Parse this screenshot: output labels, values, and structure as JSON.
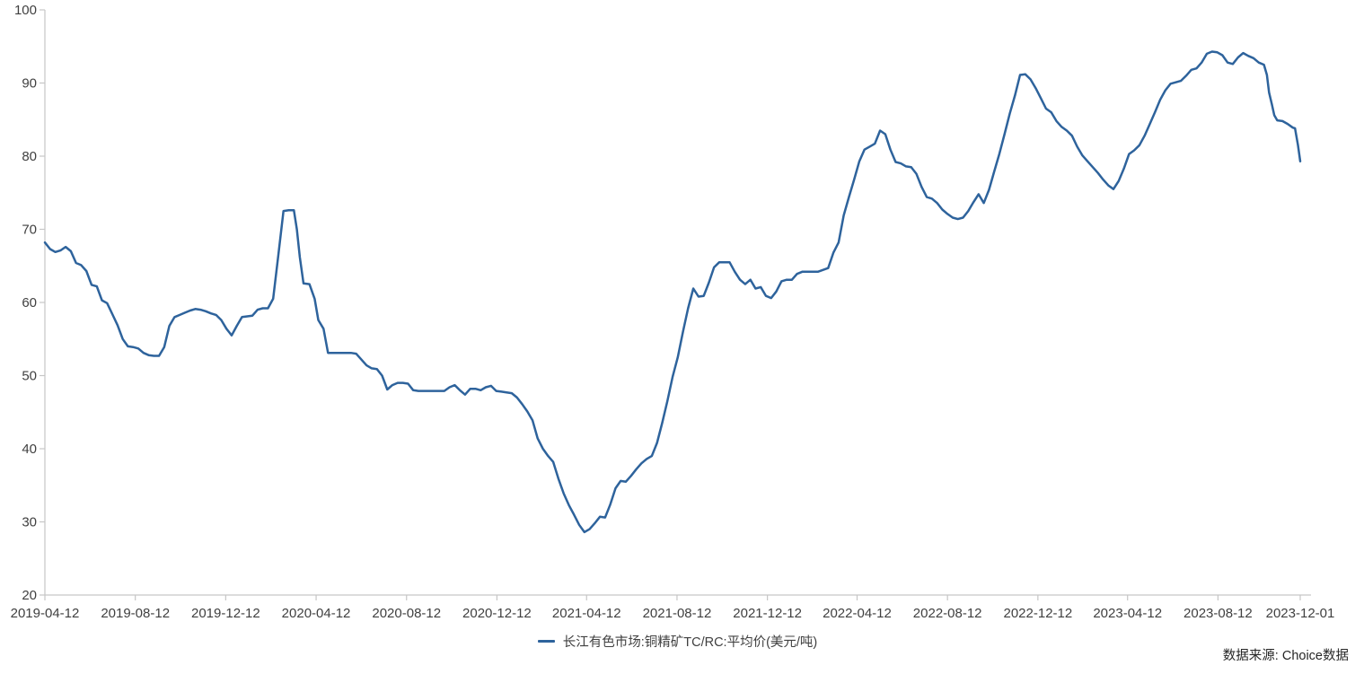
{
  "chart_data": {
    "type": "line",
    "title": "",
    "xlabel": "",
    "ylabel": "",
    "legend": "长江有色市场:铜精矿TC/RC:平均价(美元/吨)",
    "legend_position": "bottom-center",
    "grid": false,
    "ylim": [
      20,
      100
    ],
    "y_ticks": [
      20,
      30,
      40,
      50,
      60,
      70,
      80,
      90,
      100
    ],
    "x_tick_labels": [
      "2019-04-12",
      "2019-08-12",
      "2019-12-12",
      "2020-04-12",
      "2020-08-12",
      "2020-12-12",
      "2021-04-12",
      "2021-08-12",
      "2021-12-12",
      "2022-04-12",
      "2022-08-12",
      "2022-12-12",
      "2023-04-12",
      "2023-08-12",
      "2023-12-01"
    ],
    "line_color": "#2E639C",
    "axis_color": "#C6C6C6",
    "text_color": "#404040",
    "points": [
      [
        "2019-04-12",
        68.2
      ],
      [
        "2019-04-19",
        67.3
      ],
      [
        "2019-04-26",
        66.9
      ],
      [
        "2019-05-03",
        67.1
      ],
      [
        "2019-05-10",
        67.6
      ],
      [
        "2019-05-17",
        67.0
      ],
      [
        "2019-05-24",
        65.4
      ],
      [
        "2019-05-31",
        65.1
      ],
      [
        "2019-06-07",
        64.3
      ],
      [
        "2019-06-14",
        62.4
      ],
      [
        "2019-06-21",
        62.2
      ],
      [
        "2019-06-28",
        60.3
      ],
      [
        "2019-07-05",
        59.9
      ],
      [
        "2019-07-12",
        58.4
      ],
      [
        "2019-07-19",
        56.9
      ],
      [
        "2019-07-26",
        55.0
      ],
      [
        "2019-08-02",
        54.0
      ],
      [
        "2019-08-09",
        53.9
      ],
      [
        "2019-08-16",
        53.7
      ],
      [
        "2019-08-23",
        53.1
      ],
      [
        "2019-08-30",
        52.8
      ],
      [
        "2019-09-06",
        52.7
      ],
      [
        "2019-09-13",
        52.7
      ],
      [
        "2019-09-20",
        53.9
      ],
      [
        "2019-09-27",
        56.8
      ],
      [
        "2019-10-04",
        58.0
      ],
      [
        "2019-10-11",
        58.3
      ],
      [
        "2019-10-18",
        58.6
      ],
      [
        "2019-10-25",
        58.9
      ],
      [
        "2019-11-01",
        59.1
      ],
      [
        "2019-11-08",
        59.0
      ],
      [
        "2019-11-15",
        58.8
      ],
      [
        "2019-11-22",
        58.5
      ],
      [
        "2019-11-29",
        58.3
      ],
      [
        "2019-12-06",
        57.6
      ],
      [
        "2019-12-13",
        56.4
      ],
      [
        "2019-12-20",
        55.5
      ],
      [
        "2019-12-27",
        56.8
      ],
      [
        "2020-01-03",
        58.0
      ],
      [
        "2020-01-10",
        58.1
      ],
      [
        "2020-01-17",
        58.2
      ],
      [
        "2020-01-24",
        59.0
      ],
      [
        "2020-01-31",
        59.2
      ],
      [
        "2020-02-07",
        59.2
      ],
      [
        "2020-02-14",
        60.5
      ],
      [
        "2020-02-21",
        66.5
      ],
      [
        "2020-02-28",
        72.5
      ],
      [
        "2020-03-06",
        72.6
      ],
      [
        "2020-03-13",
        72.6
      ],
      [
        "2020-03-17",
        70.0
      ],
      [
        "2020-03-21",
        66.2
      ],
      [
        "2020-03-26",
        62.6
      ],
      [
        "2020-04-03",
        62.5
      ],
      [
        "2020-04-10",
        60.5
      ],
      [
        "2020-04-15",
        57.6
      ],
      [
        "2020-04-22",
        56.4
      ],
      [
        "2020-04-28",
        53.1
      ],
      [
        "2020-05-15",
        53.1
      ],
      [
        "2020-05-29",
        53.1
      ],
      [
        "2020-06-05",
        53.0
      ],
      [
        "2020-06-12",
        52.2
      ],
      [
        "2020-06-19",
        51.4
      ],
      [
        "2020-06-26",
        51.0
      ],
      [
        "2020-07-03",
        50.9
      ],
      [
        "2020-07-10",
        50.0
      ],
      [
        "2020-07-17",
        48.1
      ],
      [
        "2020-07-24",
        48.7
      ],
      [
        "2020-07-31",
        49.0
      ],
      [
        "2020-08-07",
        49.0
      ],
      [
        "2020-08-14",
        48.9
      ],
      [
        "2020-08-21",
        48.0
      ],
      [
        "2020-08-28",
        47.9
      ],
      [
        "2020-09-11",
        47.9
      ],
      [
        "2020-09-25",
        47.9
      ],
      [
        "2020-10-02",
        47.9
      ],
      [
        "2020-10-09",
        48.4
      ],
      [
        "2020-10-16",
        48.7
      ],
      [
        "2020-10-23",
        48.0
      ],
      [
        "2020-10-30",
        47.4
      ],
      [
        "2020-11-06",
        48.2
      ],
      [
        "2020-11-13",
        48.2
      ],
      [
        "2020-11-20",
        48.0
      ],
      [
        "2020-11-27",
        48.4
      ],
      [
        "2020-12-04",
        48.6
      ],
      [
        "2020-12-11",
        47.9
      ],
      [
        "2020-12-18",
        47.8
      ],
      [
        "2020-12-25",
        47.7
      ],
      [
        "2021-01-01",
        47.6
      ],
      [
        "2021-01-08",
        47.0
      ],
      [
        "2021-01-15",
        46.1
      ],
      [
        "2021-01-22",
        45.1
      ],
      [
        "2021-01-29",
        43.9
      ],
      [
        "2021-02-05",
        41.4
      ],
      [
        "2021-02-12",
        40.0
      ],
      [
        "2021-02-19",
        39.0
      ],
      [
        "2021-02-26",
        38.2
      ],
      [
        "2021-03-05",
        35.9
      ],
      [
        "2021-03-12",
        33.9
      ],
      [
        "2021-03-19",
        32.3
      ],
      [
        "2021-03-26",
        31.0
      ],
      [
        "2021-04-02",
        29.6
      ],
      [
        "2021-04-09",
        28.6
      ],
      [
        "2021-04-16",
        29.0
      ],
      [
        "2021-04-23",
        29.8
      ],
      [
        "2021-04-30",
        30.7
      ],
      [
        "2021-05-07",
        30.6
      ],
      [
        "2021-05-14",
        32.4
      ],
      [
        "2021-05-21",
        34.6
      ],
      [
        "2021-05-28",
        35.6
      ],
      [
        "2021-06-04",
        35.5
      ],
      [
        "2021-06-11",
        36.3
      ],
      [
        "2021-06-18",
        37.2
      ],
      [
        "2021-06-25",
        38.0
      ],
      [
        "2021-07-02",
        38.6
      ],
      [
        "2021-07-09",
        39.0
      ],
      [
        "2021-07-16",
        40.8
      ],
      [
        "2021-07-23",
        43.5
      ],
      [
        "2021-07-30",
        46.5
      ],
      [
        "2021-08-06",
        49.8
      ],
      [
        "2021-08-13",
        52.5
      ],
      [
        "2021-08-20",
        56.0
      ],
      [
        "2021-08-27",
        59.2
      ],
      [
        "2021-09-03",
        61.9
      ],
      [
        "2021-09-10",
        60.8
      ],
      [
        "2021-09-17",
        60.9
      ],
      [
        "2021-09-24",
        62.7
      ],
      [
        "2021-10-01",
        64.8
      ],
      [
        "2021-10-08",
        65.5
      ],
      [
        "2021-10-22",
        65.5
      ],
      [
        "2021-10-29",
        64.2
      ],
      [
        "2021-11-05",
        63.1
      ],
      [
        "2021-11-12",
        62.5
      ],
      [
        "2021-11-19",
        63.1
      ],
      [
        "2021-11-26",
        61.9
      ],
      [
        "2021-12-03",
        62.1
      ],
      [
        "2021-12-10",
        60.9
      ],
      [
        "2021-12-17",
        60.6
      ],
      [
        "2021-12-24",
        61.5
      ],
      [
        "2021-12-31",
        62.9
      ],
      [
        "2022-01-07",
        63.1
      ],
      [
        "2022-01-14",
        63.1
      ],
      [
        "2022-01-21",
        63.9
      ],
      [
        "2022-01-28",
        64.2
      ],
      [
        "2022-02-18",
        64.2
      ],
      [
        "2022-03-04",
        64.7
      ],
      [
        "2022-03-11",
        66.8
      ],
      [
        "2022-03-18",
        68.2
      ],
      [
        "2022-03-25",
        71.9
      ],
      [
        "2022-04-01",
        74.4
      ],
      [
        "2022-04-08",
        76.8
      ],
      [
        "2022-04-15",
        79.3
      ],
      [
        "2022-04-22",
        80.9
      ],
      [
        "2022-04-29",
        81.3
      ],
      [
        "2022-05-06",
        81.7
      ],
      [
        "2022-05-13",
        83.5
      ],
      [
        "2022-05-20",
        83.0
      ],
      [
        "2022-05-27",
        80.9
      ],
      [
        "2022-06-03",
        79.2
      ],
      [
        "2022-06-10",
        79.0
      ],
      [
        "2022-06-17",
        78.6
      ],
      [
        "2022-06-24",
        78.5
      ],
      [
        "2022-07-01",
        77.6
      ],
      [
        "2022-07-08",
        75.8
      ],
      [
        "2022-07-15",
        74.4
      ],
      [
        "2022-07-22",
        74.2
      ],
      [
        "2022-07-29",
        73.6
      ],
      [
        "2022-08-05",
        72.7
      ],
      [
        "2022-08-12",
        72.1
      ],
      [
        "2022-08-19",
        71.6
      ],
      [
        "2022-08-26",
        71.4
      ],
      [
        "2022-09-02",
        71.6
      ],
      [
        "2022-09-09",
        72.5
      ],
      [
        "2022-09-16",
        73.7
      ],
      [
        "2022-09-23",
        74.8
      ],
      [
        "2022-09-30",
        73.6
      ],
      [
        "2022-10-07",
        75.4
      ],
      [
        "2022-10-14",
        77.9
      ],
      [
        "2022-10-21",
        80.3
      ],
      [
        "2022-10-28",
        83.0
      ],
      [
        "2022-11-04",
        85.8
      ],
      [
        "2022-11-11",
        88.3
      ],
      [
        "2022-11-18",
        91.1
      ],
      [
        "2022-11-25",
        91.2
      ],
      [
        "2022-12-02",
        90.5
      ],
      [
        "2022-12-09",
        89.3
      ],
      [
        "2022-12-16",
        87.9
      ],
      [
        "2022-12-23",
        86.5
      ],
      [
        "2022-12-30",
        86.0
      ],
      [
        "2023-01-06",
        84.8
      ],
      [
        "2023-01-13",
        84.0
      ],
      [
        "2023-01-20",
        83.5
      ],
      [
        "2023-01-27",
        82.8
      ],
      [
        "2023-02-03",
        81.3
      ],
      [
        "2023-02-10",
        80.1
      ],
      [
        "2023-02-17",
        79.3
      ],
      [
        "2023-02-24",
        78.5
      ],
      [
        "2023-03-03",
        77.7
      ],
      [
        "2023-03-10",
        76.8
      ],
      [
        "2023-03-17",
        76.0
      ],
      [
        "2023-03-24",
        75.5
      ],
      [
        "2023-03-31",
        76.6
      ],
      [
        "2023-04-07",
        78.3
      ],
      [
        "2023-04-14",
        80.3
      ],
      [
        "2023-04-21",
        80.8
      ],
      [
        "2023-04-28",
        81.5
      ],
      [
        "2023-05-05",
        82.8
      ],
      [
        "2023-05-12",
        84.4
      ],
      [
        "2023-05-19",
        86.0
      ],
      [
        "2023-05-26",
        87.7
      ],
      [
        "2023-06-02",
        89.0
      ],
      [
        "2023-06-09",
        89.9
      ],
      [
        "2023-06-16",
        90.1
      ],
      [
        "2023-06-23",
        90.3
      ],
      [
        "2023-06-30",
        91.0
      ],
      [
        "2023-07-07",
        91.8
      ],
      [
        "2023-07-14",
        92.0
      ],
      [
        "2023-07-21",
        92.8
      ],
      [
        "2023-07-28",
        94.0
      ],
      [
        "2023-08-04",
        94.3
      ],
      [
        "2023-08-11",
        94.2
      ],
      [
        "2023-08-18",
        93.8
      ],
      [
        "2023-08-25",
        92.8
      ],
      [
        "2023-09-01",
        92.6
      ],
      [
        "2023-09-08",
        93.5
      ],
      [
        "2023-09-15",
        94.1
      ],
      [
        "2023-09-22",
        93.7
      ],
      [
        "2023-09-29",
        93.4
      ],
      [
        "2023-10-06",
        92.8
      ],
      [
        "2023-10-13",
        92.5
      ],
      [
        "2023-10-17",
        91.1
      ],
      [
        "2023-10-20",
        88.7
      ],
      [
        "2023-10-24",
        87.0
      ],
      [
        "2023-10-27",
        85.6
      ],
      [
        "2023-10-31",
        84.9
      ],
      [
        "2023-11-07",
        84.8
      ],
      [
        "2023-11-14",
        84.4
      ],
      [
        "2023-11-21",
        83.9
      ],
      [
        "2023-11-24",
        83.8
      ],
      [
        "2023-11-28",
        81.5
      ],
      [
        "2023-12-01",
        79.3
      ]
    ]
  },
  "footer": {
    "source_text": "数据来源: Choice数据"
  }
}
